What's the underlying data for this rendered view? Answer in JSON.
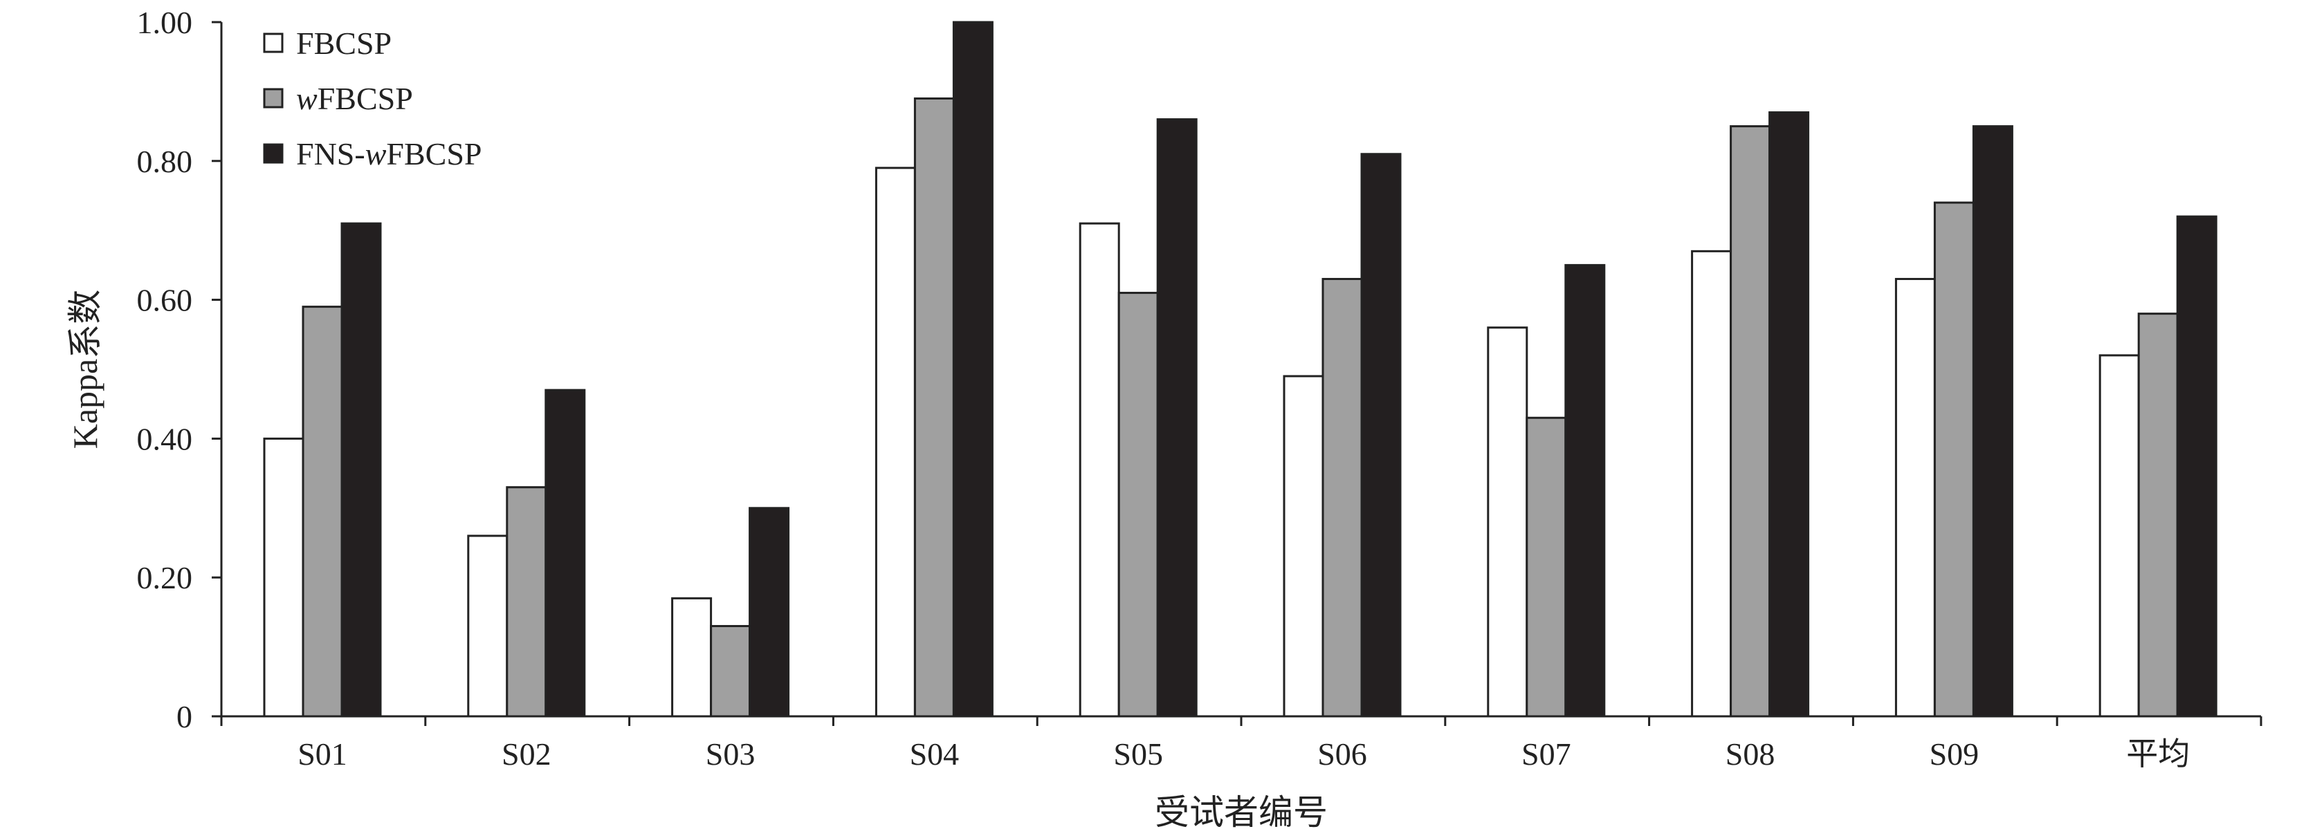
{
  "chart_data": {
    "type": "bar",
    "title": "",
    "xlabel": "受试者编号",
    "ylabel": "Kappa系数",
    "categories": [
      "S01",
      "S02",
      "S03",
      "S04",
      "S05",
      "S06",
      "S07",
      "S08",
      "S09",
      "平均"
    ],
    "ylim": [
      0,
      1.0
    ],
    "yticks": [
      0,
      0.2,
      0.4,
      0.6,
      0.8,
      1.0
    ],
    "ytick_labels": [
      "0",
      "0.20",
      "0.40",
      "0.60",
      "0.80",
      "1.00"
    ],
    "grid": false,
    "legend_position": "top-left",
    "series": [
      {
        "name": "FBCSP",
        "name_prefix_italic": "",
        "name_rest": "FBCSP",
        "color": "#ffffff",
        "values": [
          0.4,
          0.26,
          0.17,
          0.79,
          0.71,
          0.49,
          0.56,
          0.67,
          0.63,
          0.52
        ]
      },
      {
        "name": "wFBCSP",
        "name_prefix_italic": "w",
        "name_rest": "FBCSP",
        "color": "#a0a0a0",
        "values": [
          0.59,
          0.33,
          0.13,
          0.89,
          0.61,
          0.63,
          0.43,
          0.85,
          0.74,
          0.58
        ]
      },
      {
        "name": "FNS-wFBCSP",
        "name_prefix_plain": "FNS-",
        "name_prefix_italic": "w",
        "name_rest": "FBCSP",
        "color": "#231f20",
        "values": [
          0.71,
          0.47,
          0.3,
          1.0,
          0.86,
          0.81,
          0.65,
          0.87,
          0.85,
          0.72
        ]
      }
    ]
  }
}
